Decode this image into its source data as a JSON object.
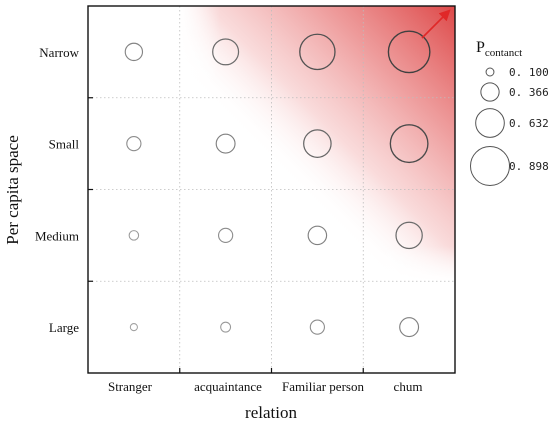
{
  "chart_data": {
    "type": "scatter",
    "subtype": "bubble-grid",
    "xlabel": "relation",
    "ylabel": "Per capita space",
    "x_categories": [
      "Stranger",
      "acquaintance",
      "Familiar person",
      "chum"
    ],
    "y_categories": [
      "Narrow",
      "Small",
      "Medium",
      "Large"
    ],
    "size_variable": {
      "title": "P",
      "title_subscript": "contanct",
      "legend_values": [
        "0. 100",
        "0. 366",
        "0. 632",
        "0. 898"
      ],
      "legend_numeric": [
        0.1,
        0.366,
        0.632,
        0.898
      ]
    },
    "points": [
      {
        "x": "Stranger",
        "y": "Narrow",
        "p": 0.34
      },
      {
        "x": "acquaintance",
        "y": "Narrow",
        "p": 0.56
      },
      {
        "x": "Familiar person",
        "y": "Narrow",
        "p": 0.8
      },
      {
        "x": "chum",
        "y": "Narrow",
        "p": 0.96
      },
      {
        "x": "Stranger",
        "y": "Small",
        "p": 0.26
      },
      {
        "x": "acquaintance",
        "y": "Small",
        "p": 0.38
      },
      {
        "x": "Familiar person",
        "y": "Small",
        "p": 0.6
      },
      {
        "x": "chum",
        "y": "Small",
        "p": 0.86
      },
      {
        "x": "Stranger",
        "y": "Medium",
        "p": 0.14
      },
      {
        "x": "acquaintance",
        "y": "Medium",
        "p": 0.26
      },
      {
        "x": "Familiar person",
        "y": "Medium",
        "p": 0.37
      },
      {
        "x": "chum",
        "y": "Medium",
        "p": 0.57
      },
      {
        "x": "Stranger",
        "y": "Large",
        "p": 0.08
      },
      {
        "x": "acquaintance",
        "y": "Large",
        "p": 0.15
      },
      {
        "x": "Familiar person",
        "y": "Large",
        "p": 0.26
      },
      {
        "x": "chum",
        "y": "Large",
        "p": 0.38
      }
    ],
    "background_gradient": "red, increasing toward top-right",
    "arrow_color": "#e02828",
    "grid": true,
    "legend_position": "right"
  }
}
